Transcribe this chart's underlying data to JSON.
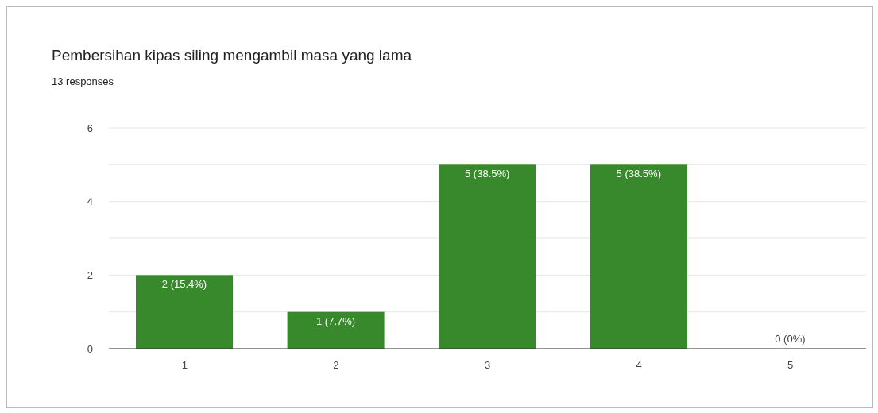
{
  "chart_data": {
    "type": "bar",
    "title": "Pembersihan kipas siling mengambil masa yang lama",
    "subtitle": "13 responses",
    "categories": [
      "1",
      "2",
      "3",
      "4",
      "5"
    ],
    "values": [
      2,
      1,
      5,
      5,
      0
    ],
    "value_labels": [
      "2 (15.4%)",
      "1 (7.7%)",
      "5 (38.5%)",
      "5 (38.5%)",
      "0 (0%)"
    ],
    "color": "#38892b",
    "ylim": [
      0,
      6
    ],
    "yticks": [
      0,
      {
        "value": 1,
        "label": null
      },
      2,
      {
        "value": 3,
        "label": null
      },
      4,
      {
        "value": 5,
        "label": null
      },
      6
    ],
    "grid": "y",
    "legend": false
  }
}
